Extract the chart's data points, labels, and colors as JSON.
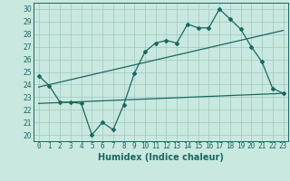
{
  "title": "",
  "xlabel": "Humidex (Indice chaleur)",
  "xlim": [
    -0.5,
    23.5
  ],
  "ylim": [
    19.5,
    30.5
  ],
  "yticks": [
    20,
    21,
    22,
    23,
    24,
    25,
    26,
    27,
    28,
    29,
    30
  ],
  "xticks": [
    0,
    1,
    2,
    3,
    4,
    5,
    6,
    7,
    8,
    9,
    10,
    11,
    12,
    13,
    14,
    15,
    16,
    17,
    18,
    19,
    20,
    21,
    22,
    23
  ],
  "bg_color": "#c8e8e0",
  "grid_color": "#a0c8c0",
  "line_color": "#1a6860",
  "line1_x": [
    0,
    1,
    2,
    3,
    4,
    5,
    6,
    7,
    8,
    9,
    10,
    11,
    12,
    13,
    14,
    15,
    16,
    17,
    18,
    19,
    20,
    21,
    22,
    23
  ],
  "line1_y": [
    24.7,
    23.9,
    22.6,
    22.6,
    22.5,
    20.0,
    21.0,
    20.4,
    22.4,
    24.9,
    26.6,
    27.3,
    27.5,
    27.3,
    28.8,
    28.5,
    28.5,
    30.0,
    29.2,
    28.4,
    27.0,
    25.8,
    23.7,
    23.3
  ],
  "line2_x": [
    0,
    23
  ],
  "line2_y": [
    23.8,
    28.3
  ],
  "line3_x": [
    0,
    23
  ],
  "line3_y": [
    22.5,
    23.3
  ],
  "xlabel_fontsize": 7,
  "tick_fontsize": 5.5,
  "line_width": 0.9,
  "marker_size": 2.0
}
